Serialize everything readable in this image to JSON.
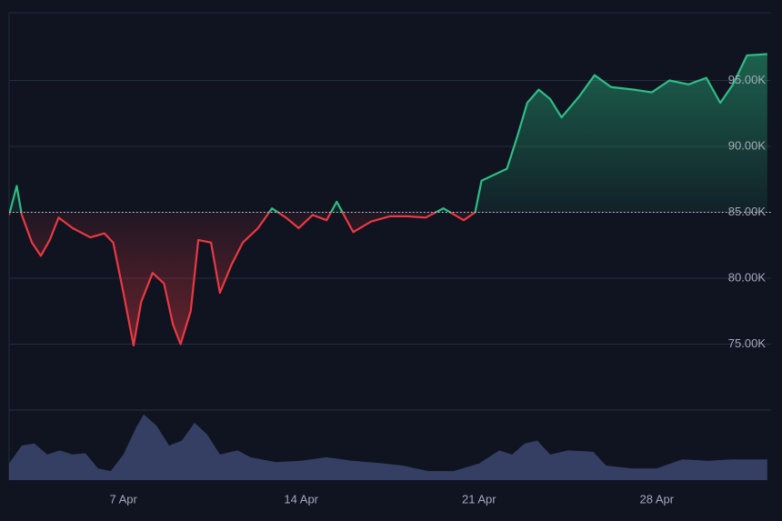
{
  "chart_data": {
    "type": "line",
    "x": [
      2.5,
      2.8,
      3.0,
      3.4,
      3.75,
      4.1,
      4.45,
      5.0,
      5.7,
      6.25,
      6.6,
      7.0,
      7.4,
      7.7,
      8.15,
      8.6,
      8.95,
      9.25,
      9.65,
      9.95,
      10.45,
      10.8,
      11.25,
      11.7,
      12.3,
      12.85,
      13.4,
      13.9,
      14.45,
      15.0,
      15.4,
      16.05,
      16.75,
      17.5,
      18.2,
      18.9,
      19.6,
      20.4,
      20.85,
      21.1,
      21.65,
      22.1,
      22.5,
      22.9,
      23.35,
      23.8,
      24.25,
      24.95,
      25.55,
      26.2,
      27.1,
      27.8,
      28.5,
      29.25,
      29.95,
      30.5,
      31.0,
      31.55,
      32.35
    ],
    "values": [
      84.8,
      87.0,
      84.8,
      82.7,
      81.7,
      82.9,
      84.6,
      83.8,
      83.1,
      83.4,
      82.7,
      78.9,
      74.9,
      78.2,
      80.4,
      79.6,
      76.5,
      75.0,
      77.5,
      82.9,
      82.7,
      78.9,
      81.0,
      82.7,
      83.8,
      85.3,
      84.6,
      83.8,
      84.8,
      84.4,
      85.8,
      83.5,
      84.3,
      84.7,
      84.7,
      84.6,
      85.3,
      84.4,
      85.0,
      87.4,
      87.9,
      88.3,
      90.7,
      93.3,
      94.3,
      93.6,
      92.2,
      93.8,
      95.4,
      94.5,
      94.3,
      94.1,
      95.0,
      94.7,
      95.2,
      93.3,
      94.7,
      96.9,
      97.0
    ],
    "baseline": 85,
    "up_color": "#2ebd85",
    "down_color": "#ea3943",
    "xlim": [
      2.5,
      32.5
    ],
    "xticks": [
      {
        "value": 7,
        "label": "7 Apr"
      },
      {
        "value": 14,
        "label": "14 Apr"
      },
      {
        "value": 21,
        "label": "21 Apr"
      },
      {
        "value": 28,
        "label": "28 Apr"
      }
    ],
    "ylim": [
      70,
      100
    ],
    "yticks": [
      {
        "value": 75,
        "label": "75.00K"
      },
      {
        "value": 80,
        "label": "80.00K"
      },
      {
        "value": 85,
        "label": "85.00K"
      },
      {
        "value": 90,
        "label": "90.00K"
      },
      {
        "value": 95,
        "label": "95.00K"
      }
    ],
    "grid": true,
    "volume": {
      "color": "#3b4670",
      "ylim": [
        0,
        100
      ],
      "x": [
        2.5,
        3.0,
        3.5,
        4.0,
        4.5,
        5.0,
        5.5,
        6.0,
        6.5,
        7.0,
        7.5,
        7.8,
        8.3,
        8.8,
        9.3,
        9.8,
        10.3,
        10.8,
        11.5,
        12.0,
        13.0,
        14.0,
        15.0,
        16.0,
        17.0,
        18.0,
        19.0,
        20.0,
        21.0,
        21.8,
        22.3,
        22.8,
        23.3,
        23.8,
        24.5,
        25.5,
        26.0,
        27.0,
        28.0,
        29.0,
        30.0,
        31.0,
        32.35
      ],
      "values": [
        24,
        50,
        53,
        37,
        43,
        37,
        39,
        17,
        13,
        37,
        76,
        95,
        79,
        50,
        57,
        83,
        66,
        37,
        43,
        33,
        26,
        28,
        33,
        28,
        25,
        21,
        13,
        13,
        24,
        43,
        37,
        53,
        57,
        37,
        43,
        41,
        21,
        17,
        17,
        30,
        28,
        30,
        30
      ]
    }
  }
}
